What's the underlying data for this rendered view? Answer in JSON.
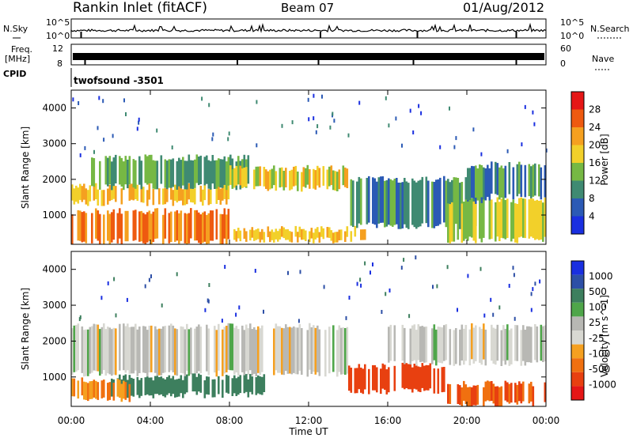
{
  "header": {
    "station": "Rankin Inlet (fitACF)",
    "beam": "Beam 07",
    "date": "01/Aug/2012"
  },
  "side_labels": {
    "nsky": "N.Sky",
    "nsearch": "N.Search",
    "freq_line1": "Freq.",
    "freq_line2": "[MHz]",
    "nave": "Nave",
    "cpid": "CPID",
    "cpid_value": "twofsound -3501"
  },
  "noise_panel": {
    "left_ticks": [
      "10^5",
      "10^0"
    ],
    "right_ticks": [
      "10^5",
      "10^0"
    ]
  },
  "freq_panel": {
    "left_ticks": [
      "12",
      "8"
    ],
    "right_ticks": [
      "60",
      "0"
    ]
  },
  "axes": {
    "x_ticks": [
      "00:00",
      "04:00",
      "08:00",
      "12:00",
      "16:00",
      "20:00",
      "00:00"
    ],
    "x_label": "Time UT",
    "y_ticks": [
      "1000",
      "2000",
      "3000",
      "4000"
    ],
    "y_label": "Slant Range [km]"
  },
  "colors": {
    "power": [
      "#1a2fe0",
      "#2b5ab5",
      "#3f8a72",
      "#76b844",
      "#f2d02a",
      "#f5a020",
      "#ee5a10",
      "#e51616"
    ],
    "velocity": [
      "#1a2fe0",
      "#2d4fa6",
      "#3d7f5e",
      "#4fa64a",
      "#b8b8b4",
      "#d8d8d2",
      "#f5a020",
      "#f07010",
      "#e84010",
      "#e51616"
    ]
  },
  "chart_data": [
    {
      "type": "heatmap",
      "title": "Power",
      "ylabel": "Slant Range [km]",
      "xlabel": "",
      "ylim": [
        180,
        4500
      ],
      "xlim": [
        0,
        24
      ],
      "colorbar": {
        "label": "Power [dB]",
        "ticks": [
          "4",
          "8",
          "12",
          "16",
          "20",
          "24",
          "28"
        ],
        "range": [
          0,
          32
        ]
      },
      "regions": [
        {
          "t": [
            0,
            8
          ],
          "r": [
            250,
            1100
          ],
          "value": 24
        },
        {
          "t": [
            0,
            8
          ],
          "r": [
            1350,
            1800
          ],
          "value": 20
        },
        {
          "t": [
            1,
            9
          ],
          "r": [
            1800,
            2600
          ],
          "value": 12
        },
        {
          "t": [
            8,
            15
          ],
          "r": [
            300,
            600
          ],
          "value": 20
        },
        {
          "t": [
            8,
            14
          ],
          "r": [
            1750,
            2300
          ],
          "value": 18
        },
        {
          "t": [
            14,
            21
          ],
          "r": [
            700,
            2000
          ],
          "value": 10
        },
        {
          "t": [
            19,
            24
          ],
          "r": [
            300,
            1400
          ],
          "value": 16
        },
        {
          "t": [
            20,
            24
          ],
          "r": [
            1500,
            2400
          ],
          "value": 10
        }
      ]
    },
    {
      "type": "heatmap",
      "title": "Velocity",
      "ylabel": "Slant Range [km]",
      "xlabel": "Time UT",
      "ylim": [
        180,
        4500
      ],
      "xlim": [
        0,
        24
      ],
      "colorbar": {
        "label": "Velocity [m s^-1]",
        "ticks": [
          "1000",
          "500",
          "100",
          "25",
          "-25",
          "-100",
          "-500",
          "-1000"
        ],
        "range": [
          -1200,
          1200
        ]
      },
      "regions": [
        {
          "t": [
            0,
            14
          ],
          "r": [
            1100,
            2400
          ],
          "value": 0
        },
        {
          "t": [
            2,
            10
          ],
          "r": [
            500,
            1000
          ],
          "value": 250
        },
        {
          "t": [
            0,
            3
          ],
          "r": [
            400,
            900
          ],
          "value": -100
        },
        {
          "t": [
            14,
            19
          ],
          "r": [
            600,
            1300
          ],
          "value": -400
        },
        {
          "t": [
            16,
            24
          ],
          "r": [
            1400,
            2400
          ],
          "value": 0
        },
        {
          "t": [
            19,
            24
          ],
          "r": [
            250,
            800
          ],
          "value": -300
        }
      ]
    }
  ]
}
